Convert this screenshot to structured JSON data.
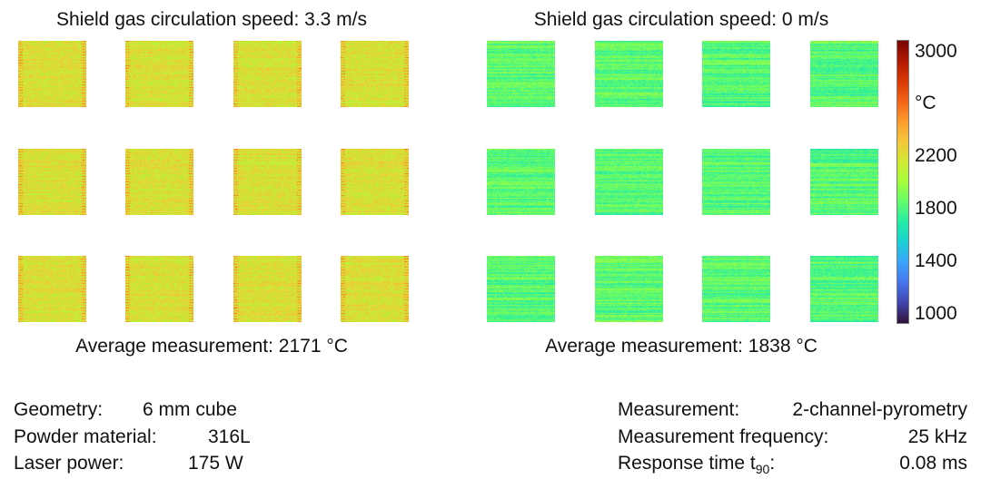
{
  "chart_data": {
    "type": "heatmap",
    "panels": [
      {
        "title": "Shield gas circulation speed: 3.3 m/s",
        "rows": 3,
        "cols": 4,
        "average_label": "Average measurement: 2171 °C",
        "average": 2171
      },
      {
        "title": "Shield gas circulation speed: 0 m/s",
        "rows": 3,
        "cols": 4,
        "average_label": "Average measurement: 1838 °C",
        "average": 1838
      }
    ],
    "colorbar": {
      "colormap": "turbo",
      "range": [
        1000,
        3000
      ],
      "ticks": [
        "3000",
        "2200",
        "1800",
        "1400",
        "1000"
      ],
      "unit": "°C"
    }
  },
  "info_left": [
    {
      "label": "Geometry:",
      "value": "6 mm cube"
    },
    {
      "label": "Powder material:",
      "value": "316L"
    },
    {
      "label": "Laser power:",
      "value": "175 W"
    }
  ],
  "info_right": [
    {
      "label": "Measurement:",
      "value": "2-channel-pyrometry"
    },
    {
      "label": "Measurement frequency:",
      "value": "25 kHz"
    },
    {
      "label": "Response time t",
      "label_sub": "90",
      "label_end": ":",
      "value": "0.08 ms"
    }
  ]
}
